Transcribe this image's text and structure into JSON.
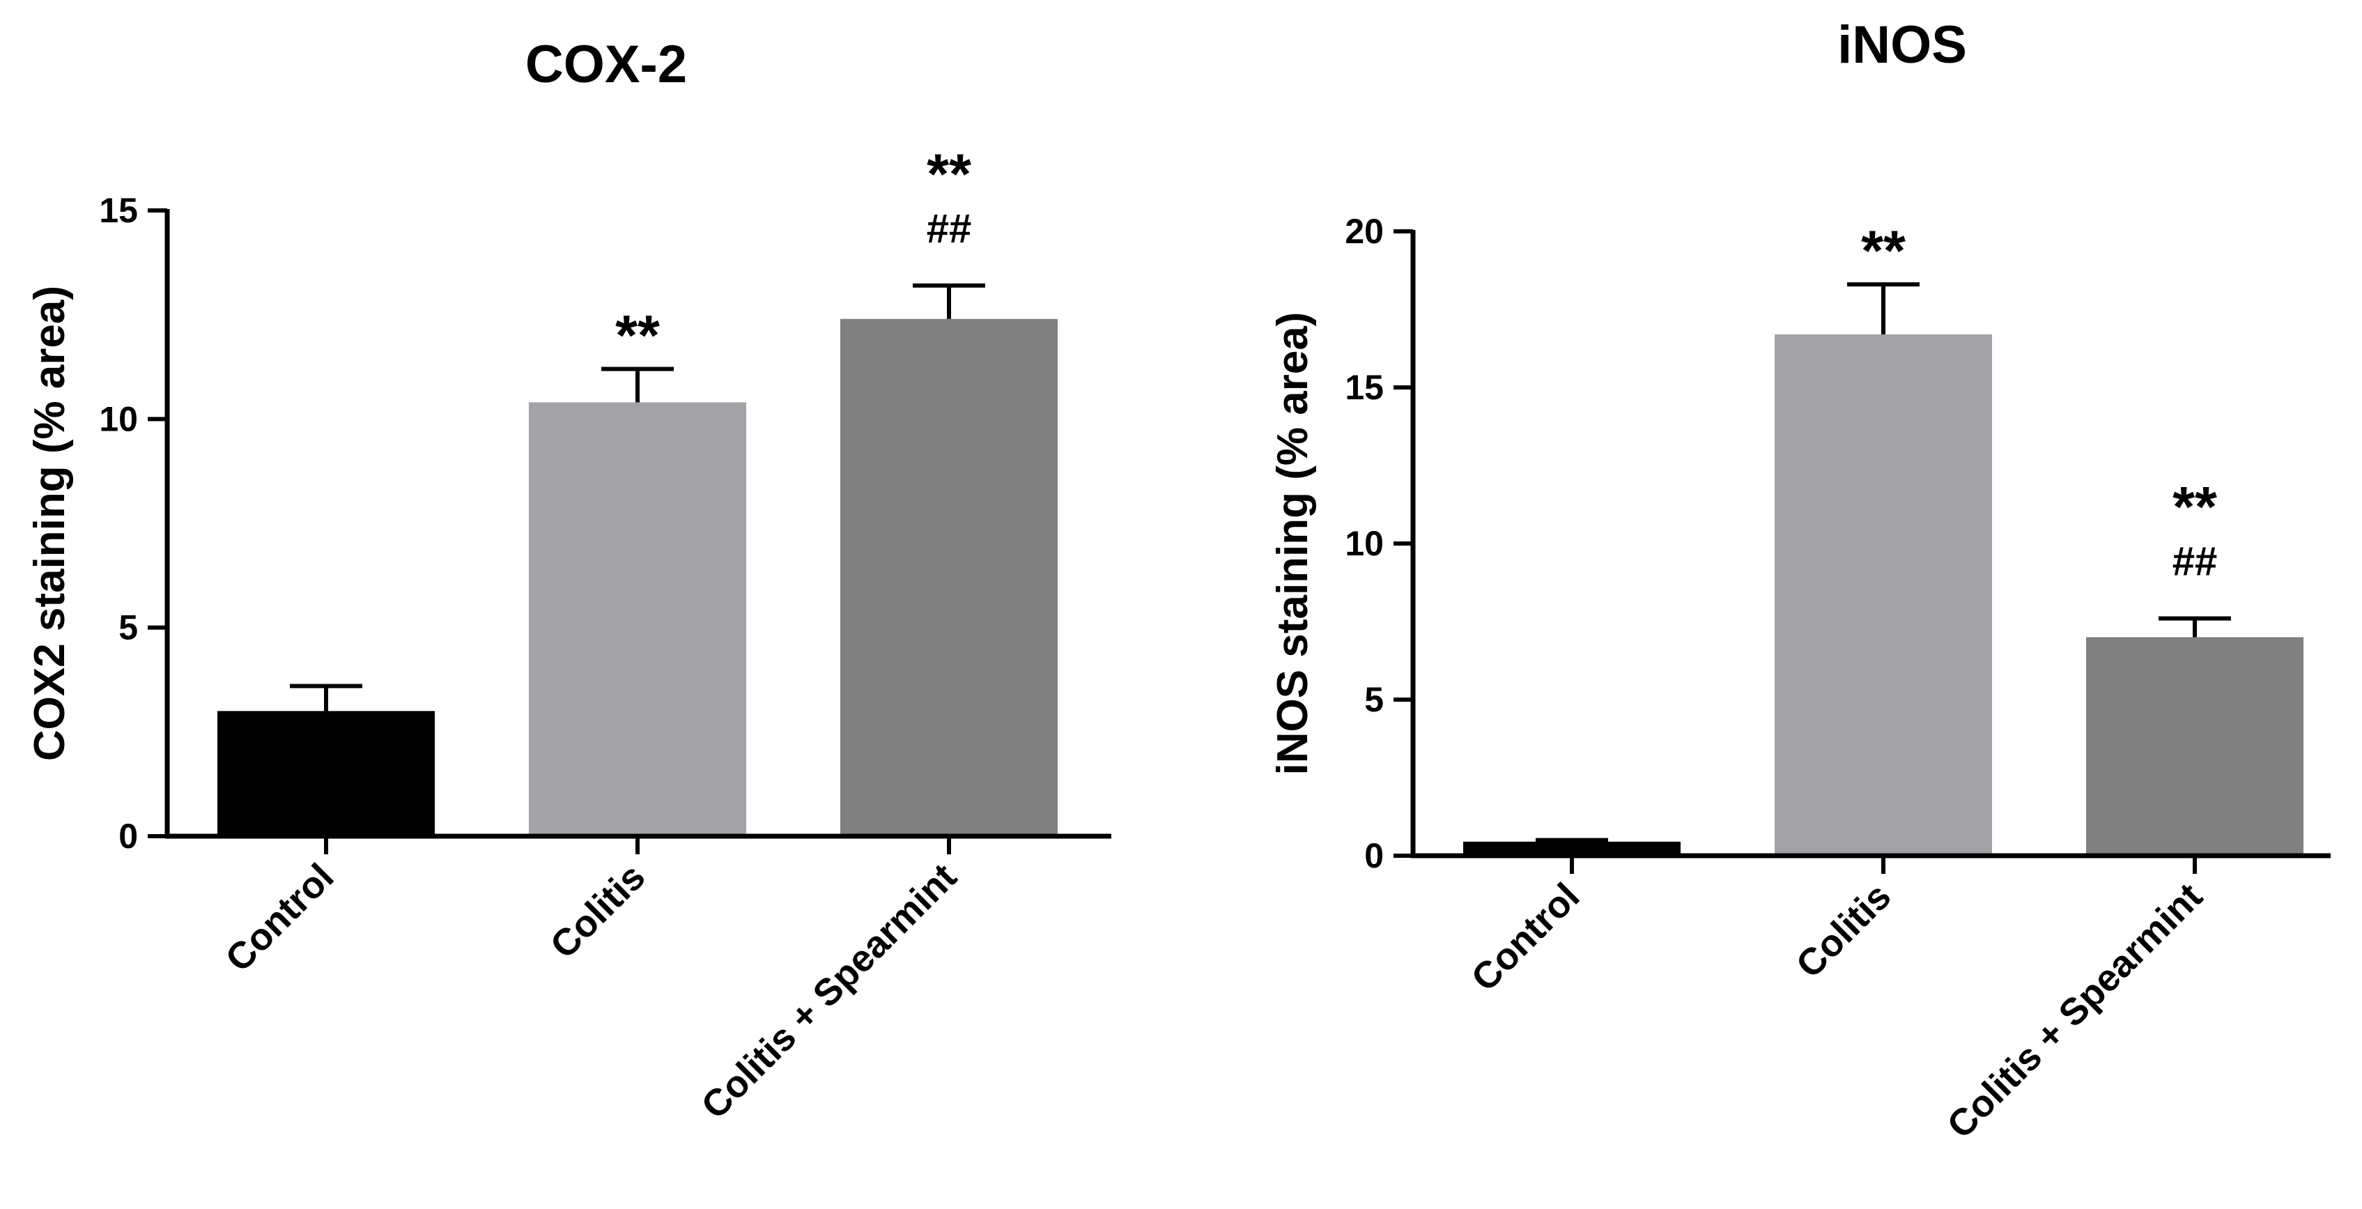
{
  "chart_data": [
    {
      "type": "bar",
      "title": "COX-2",
      "ylabel": "COX2 staining (% area)",
      "xlabel": "",
      "categories": [
        "Control",
        "Colitis",
        "Colitis + Spearmint"
      ],
      "values": [
        3.0,
        10.4,
        12.4
      ],
      "errors": [
        0.6,
        0.8,
        0.8
      ],
      "ylim": [
        0,
        15
      ],
      "yticks": [
        "0",
        "5",
        "10",
        "15"
      ],
      "bar_colors": [
        "#000000",
        "#a3a2a7",
        "#808080"
      ],
      "annotations": [
        [
          "",
          ""
        ],
        [
          "**",
          ""
        ],
        [
          "**",
          "##"
        ]
      ]
    },
    {
      "type": "bar",
      "title": "iNOS",
      "ylabel": "iNOS staining (% area)",
      "xlabel": "",
      "categories": [
        "Control",
        "Colitis",
        "Colitis + Spearmint"
      ],
      "values": [
        0.45,
        16.7,
        7.0
      ],
      "errors": [
        0.05,
        1.6,
        0.6
      ],
      "ylim": [
        0,
        20
      ],
      "yticks": [
        "0",
        "5",
        "10",
        "15",
        "20"
      ],
      "bar_colors": [
        "#000000",
        "#a3a2a7",
        "#808080"
      ],
      "annotations": [
        [
          "",
          ""
        ],
        [
          "**",
          ""
        ],
        [
          "**",
          "##"
        ]
      ]
    }
  ]
}
